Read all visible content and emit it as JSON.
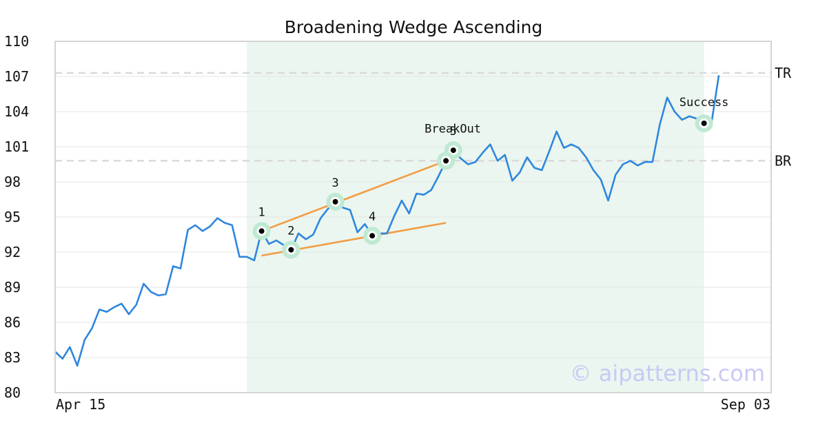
{
  "chart_data": {
    "type": "line",
    "title": "Broadening Wedge Ascending",
    "watermark": "© aipatterns.com",
    "ylim": [
      80,
      110
    ],
    "yticks": [
      "80",
      "83",
      "86",
      "89",
      "92",
      "95",
      "98",
      "101",
      "104",
      "107",
      "110"
    ],
    "xtick_labels": [
      "Apr 15",
      "Sep 03"
    ],
    "grid": true,
    "colors": {
      "price": "#2e86de",
      "trendline": "#f39c45",
      "pattern_region": "#eaf6ef",
      "marker_halo": "#bfe9d3",
      "reference_line": "#d9d9d9"
    },
    "pattern_region": {
      "x_start": 26,
      "x_end": 88
    },
    "series": [
      {
        "values": [
          83.5,
          82.9,
          83.9,
          82.3,
          84.5,
          85.5,
          87.1,
          86.9,
          87.3,
          87.6,
          86.7,
          87.5,
          89.3,
          88.6,
          88.3,
          88.4,
          90.8,
          90.6,
          93.9,
          94.3,
          93.8,
          94.2,
          94.9,
          94.5,
          94.3,
          91.6,
          91.6,
          91.3,
          93.8,
          92.7,
          93.0,
          92.6,
          92.2,
          93.6,
          93.1,
          93.5,
          94.9,
          95.7,
          96.3,
          95.8,
          95.6,
          93.7,
          94.4,
          93.4,
          93.6,
          93.6,
          95.1,
          96.4,
          95.3,
          97.0,
          96.9,
          97.3,
          98.5,
          99.8,
          100.7,
          100.0,
          99.5,
          99.7,
          100.5,
          101.2,
          99.8,
          100.3,
          98.1,
          98.8,
          100.1,
          99.2,
          99.0,
          100.6,
          102.3,
          100.9,
          101.2,
          100.9,
          100.1,
          99.0,
          98.2,
          96.4,
          98.6,
          99.5,
          99.8,
          99.4,
          99.7,
          99.7,
          102.9,
          105.2,
          104.0,
          103.3,
          103.6,
          103.4,
          103.0,
          103.0,
          107.1
        ]
      }
    ],
    "trendlines": [
      {
        "name": "upper",
        "x": [
          28,
          53
        ],
        "y": [
          93.8,
          99.8
        ]
      },
      {
        "name": "lower",
        "x": [
          28,
          53
        ],
        "y": [
          91.7,
          94.5
        ]
      }
    ],
    "pattern_points": [
      {
        "label": "1",
        "x": 28,
        "y": 93.8
      },
      {
        "label": "2",
        "x": 32,
        "y": 92.2
      },
      {
        "label": "3",
        "x": 38,
        "y": 96.3
      },
      {
        "label": "4",
        "x": 43,
        "y": 93.4
      },
      {
        "label": "5",
        "x": 54,
        "y": 100.7
      }
    ],
    "events": [
      {
        "label": "BreakOut",
        "x": 53,
        "y": 99.8
      },
      {
        "label": "Success",
        "x": 88,
        "y": 103.0
      }
    ],
    "reference_lines": [
      {
        "label": "TR",
        "y": 107.3
      },
      {
        "label": "BR",
        "y": 99.8
      }
    ]
  }
}
